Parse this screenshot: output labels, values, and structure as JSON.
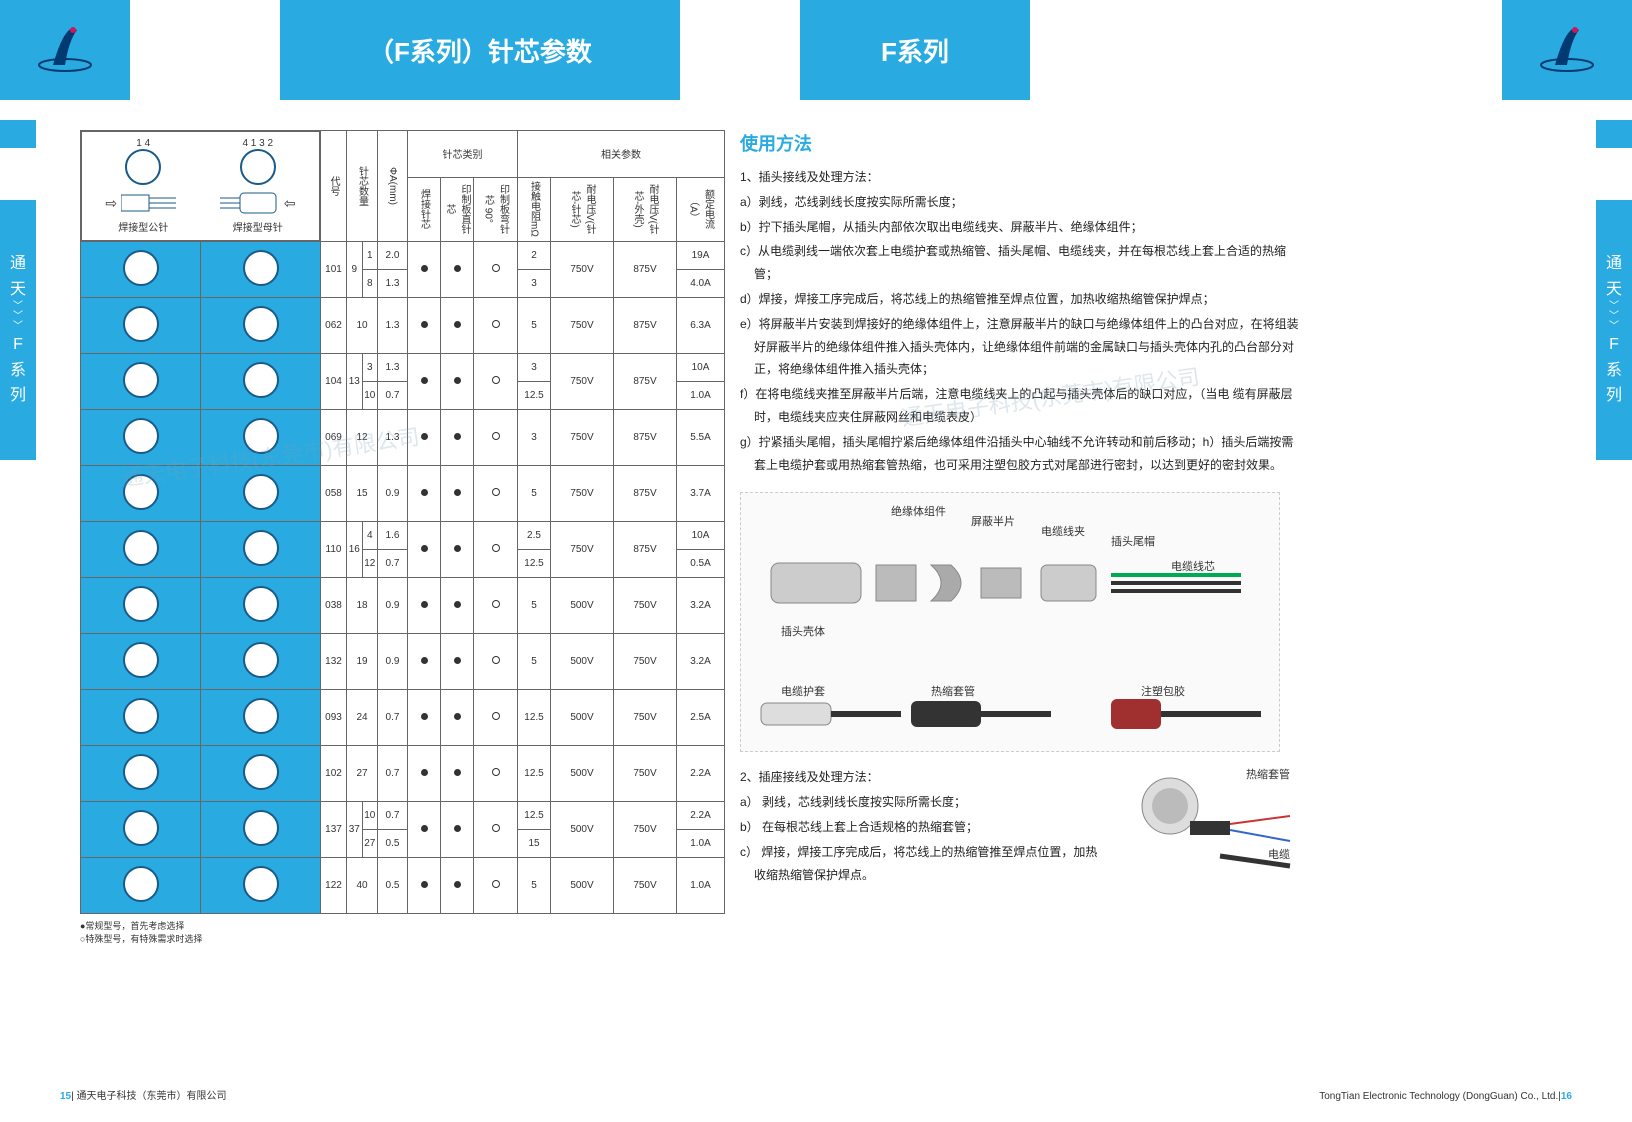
{
  "header": {
    "title_left": "（F系列）针芯参数",
    "title_right": "F系列"
  },
  "side_tab_text": [
    "通",
    "天",
    "F",
    "系",
    "列"
  ],
  "diagram_labels": {
    "male_label": "焊接型公针",
    "female_label": "焊接型母针",
    "pin_numbers_left": "1   4",
    "pin_numbers_right": "4   1\n3   2"
  },
  "table": {
    "group_headers": {
      "pin_type": "针芯类别",
      "related_params": "相关参数"
    },
    "col_headers": {
      "code": "代号",
      "pin_count": "针芯数量",
      "diameter": "ΦA(mm)",
      "solder_pin": "焊接针芯",
      "pcb_straight": "印制板直针芯",
      "pcb_bent": "印制板弯针芯 90°",
      "contact_res": "接触电阻mΩ",
      "voltage_in": "耐电压V(针芯-针芯)",
      "voltage_out": "耐电压V(针芯-外壳)",
      "rated_current": "额定电流（A）"
    },
    "rows": [
      {
        "code": "101",
        "count": "9",
        "split": [
          {
            "sub": "1",
            "dia": "2.0",
            "res": "2",
            "cur": "19A"
          },
          {
            "sub": "8",
            "dia": "1.3",
            "res": "3",
            "cur": "4.0A"
          }
        ],
        "v1": "750V",
        "v2": "875V"
      },
      {
        "code": "062",
        "count": "10",
        "dia": "1.3",
        "res": "5",
        "v1": "750V",
        "v2": "875V",
        "cur": "6.3A"
      },
      {
        "code": "104",
        "count": "13",
        "split": [
          {
            "sub": "3",
            "dia": "1.3",
            "res": "3",
            "cur": "10A"
          },
          {
            "sub": "10",
            "dia": "0.7",
            "res": "12.5",
            "cur": "1.0A"
          }
        ],
        "v1": "750V",
        "v2": "875V"
      },
      {
        "code": "069",
        "count": "12",
        "dia": "1.3",
        "res": "3",
        "v1": "750V",
        "v2": "875V",
        "cur": "5.5A"
      },
      {
        "code": "058",
        "count": "15",
        "dia": "0.9",
        "res": "5",
        "v1": "750V",
        "v2": "875V",
        "cur": "3.7A"
      },
      {
        "code": "110",
        "count": "16",
        "split": [
          {
            "sub": "4",
            "dia": "1.6",
            "res": "2.5",
            "cur": "10A"
          },
          {
            "sub": "12",
            "dia": "0.7",
            "res": "12.5",
            "cur": "0.5A"
          }
        ],
        "v1": "750V",
        "v2": "875V"
      },
      {
        "code": "038",
        "count": "18",
        "dia": "0.9",
        "res": "5",
        "v1": "500V",
        "v2": "750V",
        "cur": "3.2A"
      },
      {
        "code": "132",
        "count": "19",
        "dia": "0.9",
        "res": "5",
        "v1": "500V",
        "v2": "750V",
        "cur": "3.2A"
      },
      {
        "code": "093",
        "count": "24",
        "dia": "0.7",
        "res": "12.5",
        "v1": "500V",
        "v2": "750V",
        "cur": "2.5A"
      },
      {
        "code": "102",
        "count": "27",
        "dia": "0.7",
        "res": "12.5",
        "v1": "500V",
        "v2": "750V",
        "cur": "2.2A"
      },
      {
        "code": "137",
        "count": "37",
        "split": [
          {
            "sub": "10",
            "dia": "0.7",
            "res": "12.5",
            "cur": "2.2A"
          },
          {
            "sub": "27",
            "dia": "0.5",
            "res": "15",
            "cur": "1.0A"
          }
        ],
        "v1": "500V",
        "v2": "750V"
      },
      {
        "code": "122",
        "count": "40",
        "dia": "0.5",
        "res": "5",
        "v1": "500V",
        "v2": "750V",
        "cur": "1.0A"
      }
    ]
  },
  "footnotes": {
    "line1": "●常规型号，首先考虑选择",
    "line2": "○特殊型号，有特殊需求时选择"
  },
  "usage": {
    "title": "使用方法",
    "section1_title": "1、插头接线及处理方法：",
    "items1": [
      "a）剥线，芯线剥线长度按实际所需长度；",
      "b）拧下插头尾帽，从插头内部依次取出电缆线夹、屏蔽半片、绝缘体组件；",
      "c）从电缆剥线一端依次套上电缆护套或热缩管、插头尾帽、电缆线夹，并在每根芯线上套上合适的热缩管；",
      "d）焊接，焊接工序完成后，将芯线上的热缩管推至焊点位置，加热收缩热缩管保护焊点；",
      "e）将屏蔽半片安装到焊接好的绝缘体组件上，注意屏蔽半片的缺口与绝缘体组件上的凸台对应，在将组装好屏蔽半片的绝缘体组件推入插头壳体内，让绝缘体组件前端的金属缺口与插头壳体内孔的凸台部分对正，将绝缘体组件推入插头壳体；",
      "f）在将电缆线夹推至屏蔽半片后端，注意电缆线夹上的凸起与插头壳体后的缺口对应，（当电 缆有屏蔽层时，电缆线夹应夹住屏蔽网丝和电缆表皮）",
      "g）拧紧插头尾帽，插头尾帽拧紧后绝缘体组件沿插头中心轴线不允许转动和前后移动；h）插头后端按需套上电缆护套或用热缩套管热缩，也可采用注塑包胶方式对尾部进行密封，以达到更好的密封效果。"
    ],
    "section2_title": "2、插座接线及处理方法：",
    "items2": [
      "a） 剥线，芯线剥线长度按实际所需长度；",
      "b） 在每根芯线上套上合适规格的热缩套管；",
      "c） 焊接，焊接工序完成后，将芯线上的热缩管推至焊点位置，加热收缩热缩管保护焊点。"
    ]
  },
  "assembly_labels": {
    "shell": "插头壳体",
    "insulator": "绝缘体组件",
    "shield": "屏蔽半片",
    "clamp": "电缆线夹",
    "tail_cap": "插头尾帽",
    "cable_core": "电缆线芯",
    "cable_cover": "电缆护套",
    "heatshrink": "热缩套管",
    "overmold": "注塑包胶",
    "heatshrink2": "热缩套管",
    "cable": "电缆"
  },
  "footer": {
    "left_num": "15",
    "left_text": "| 通天电子科技（东莞市）有限公司",
    "right_text": "TongTian Electronic Technology (DongGuan) Co., Ltd.|",
    "right_num": "16"
  },
  "colors": {
    "brand_blue": "#29abe2",
    "text": "#333333",
    "border": "#666666"
  },
  "watermark": "通天电子科技(东莞市)有限公司"
}
